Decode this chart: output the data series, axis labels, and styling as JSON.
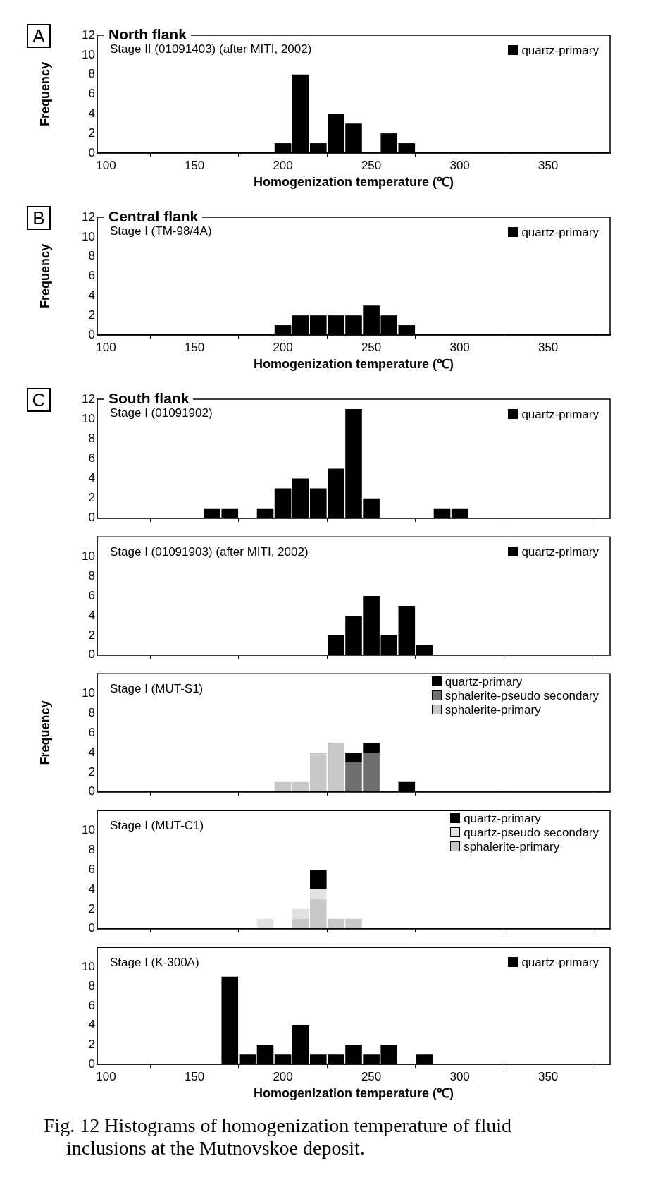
{
  "chart_data": [
    {
      "type": "bar",
      "title": "North flank",
      "subtitle": "Stage II (01091403) (after MITI, 2002)",
      "xlabel": "Homogenization temperature (℃)",
      "ylabel": "Frequency",
      "annotations": [
        "A"
      ],
      "x": [
        100,
        110,
        120,
        130,
        140,
        150,
        160,
        170,
        180,
        190,
        200,
        210,
        220,
        230,
        240,
        250,
        260,
        270,
        280,
        290,
        300,
        310,
        320,
        330,
        340,
        350,
        360,
        370,
        380
      ],
      "series": [
        {
          "name": "quartz-primary",
          "color": "#000000",
          "values": [
            0,
            0,
            0,
            0,
            0,
            0,
            0,
            0,
            0,
            0,
            1,
            8,
            1,
            4,
            3,
            0,
            2,
            1,
            0,
            0,
            0,
            0,
            0,
            0,
            0,
            0,
            0,
            0,
            0
          ]
        }
      ],
      "xlim": [
        95,
        385
      ],
      "xticks": [
        100,
        150,
        200,
        250,
        300,
        350
      ],
      "ylim": [
        0,
        12
      ],
      "yticks": [
        0,
        2,
        4,
        6,
        8,
        10,
        12
      ],
      "legend": "top right"
    },
    {
      "type": "bar",
      "title": "Central flank",
      "subtitle": "Stage I (TM-98/4A)",
      "xlabel": "Homogenization temperature (℃)",
      "ylabel": "Frequency",
      "annotations": [
        "B"
      ],
      "x": [
        100,
        110,
        120,
        130,
        140,
        150,
        160,
        170,
        180,
        190,
        200,
        210,
        220,
        230,
        240,
        250,
        260,
        270,
        280,
        290,
        300,
        310,
        320,
        330,
        340,
        350,
        360,
        370,
        380
      ],
      "series": [
        {
          "name": "quartz-primary",
          "color": "#000000",
          "values": [
            0,
            0,
            0,
            0,
            0,
            0,
            0,
            0,
            0,
            0,
            1,
            2,
            2,
            2,
            2,
            3,
            2,
            1,
            0,
            0,
            0,
            0,
            0,
            0,
            0,
            0,
            0,
            0,
            0
          ]
        }
      ],
      "xlim": [
        95,
        385
      ],
      "xticks": [
        100,
        150,
        200,
        250,
        300,
        350
      ],
      "ylim": [
        0,
        12
      ],
      "yticks": [
        0,
        2,
        4,
        6,
        8,
        10,
        12
      ],
      "legend": "top right"
    },
    {
      "type": "bar",
      "title": "South flank",
      "subtitle": "Stage I (01091902)",
      "annotations": [
        "C"
      ],
      "x": [
        100,
        110,
        120,
        130,
        140,
        150,
        160,
        170,
        180,
        190,
        200,
        210,
        220,
        230,
        240,
        250,
        260,
        270,
        280,
        290,
        300,
        310,
        320,
        330,
        340,
        350,
        360,
        370,
        380
      ],
      "series": [
        {
          "name": "quartz-primary",
          "color": "#000000",
          "values": [
            0,
            0,
            0,
            0,
            0,
            0,
            1,
            1,
            0,
            1,
            3,
            4,
            3,
            5,
            11,
            2,
            0,
            0,
            0,
            1,
            1,
            0,
            0,
            0,
            0,
            0,
            0,
            0,
            0
          ]
        }
      ],
      "xlim": [
        95,
        385
      ],
      "xticks": [
        100,
        150,
        200,
        250,
        300,
        350
      ],
      "ylim": [
        0,
        12
      ],
      "yticks": [
        0,
        2,
        4,
        6,
        8,
        10,
        12
      ],
      "legend": "top right",
      "tick_labels": "y"
    },
    {
      "type": "bar",
      "subtitle": "Stage I (01091903) (after MITI, 2002)",
      "x": [
        100,
        110,
        120,
        130,
        140,
        150,
        160,
        170,
        180,
        190,
        200,
        210,
        220,
        230,
        240,
        250,
        260,
        270,
        280,
        290,
        300,
        310,
        320,
        330,
        340,
        350,
        360,
        370,
        380
      ],
      "series": [
        {
          "name": "quartz-primary",
          "color": "#000000",
          "values": [
            0,
            0,
            0,
            0,
            0,
            0,
            0,
            0,
            0,
            0,
            0,
            0,
            0,
            2,
            4,
            6,
            2,
            5,
            1,
            0,
            0,
            0,
            0,
            0,
            0,
            0,
            0,
            0,
            0
          ]
        }
      ],
      "xlim": [
        95,
        385
      ],
      "xticks": [
        100,
        150,
        200,
        250,
        300,
        350
      ],
      "ylim": [
        0,
        12
      ],
      "yticks": [
        0,
        2,
        4,
        6,
        8,
        10
      ],
      "legend": "top right",
      "tick_labels": "y"
    },
    {
      "type": "bar",
      "subtitle": "Stage I (MUT-S1)",
      "ylabel": "Frequency",
      "stacked": true,
      "x": [
        100,
        110,
        120,
        130,
        140,
        150,
        160,
        170,
        180,
        190,
        200,
        210,
        220,
        230,
        240,
        250,
        260,
        270,
        280,
        290,
        300,
        310,
        320,
        330,
        340,
        350,
        360,
        370,
        380
      ],
      "series": [
        {
          "name": "sphalerite-primary",
          "color": "#c8c8c8",
          "values": [
            0,
            0,
            0,
            0,
            0,
            0,
            0,
            0,
            0,
            0,
            1,
            1,
            4,
            5,
            0,
            0,
            0,
            0,
            0,
            0,
            0,
            0,
            0,
            0,
            0,
            0,
            0,
            0,
            0
          ]
        },
        {
          "name": "sphalerite-pseudo secondary",
          "color": "#6e6e6e",
          "values": [
            0,
            0,
            0,
            0,
            0,
            0,
            0,
            0,
            0,
            0,
            0,
            0,
            0,
            0,
            3,
            4,
            0,
            0,
            0,
            0,
            0,
            0,
            0,
            0,
            0,
            0,
            0,
            0,
            0
          ]
        },
        {
          "name": "quartz-primary",
          "color": "#000000",
          "values": [
            0,
            0,
            0,
            0,
            0,
            0,
            0,
            0,
            0,
            0,
            0,
            0,
            0,
            0,
            1,
            1,
            0,
            1,
            0,
            0,
            0,
            0,
            0,
            0,
            0,
            0,
            0,
            0,
            0
          ]
        }
      ],
      "xlim": [
        95,
        385
      ],
      "xticks": [
        100,
        150,
        200,
        250,
        300,
        350
      ],
      "ylim": [
        0,
        12
      ],
      "yticks": [
        0,
        2,
        4,
        6,
        8,
        10
      ],
      "legend": "top right",
      "tick_labels": "y"
    },
    {
      "type": "bar",
      "subtitle": "Stage I (MUT-C1)",
      "stacked": true,
      "x": [
        100,
        110,
        120,
        130,
        140,
        150,
        160,
        170,
        180,
        190,
        200,
        210,
        220,
        230,
        240,
        250,
        260,
        270,
        280,
        290,
        300,
        310,
        320,
        330,
        340,
        350,
        360,
        370,
        380
      ],
      "series": [
        {
          "name": "sphalerite-primary",
          "color": "#c8c8c8",
          "values": [
            0,
            0,
            0,
            0,
            0,
            0,
            0,
            0,
            0,
            0,
            0,
            1,
            3,
            1,
            1,
            0,
            0,
            0,
            0,
            0,
            0,
            0,
            0,
            0,
            0,
            0,
            0,
            0,
            0
          ]
        },
        {
          "name": "quartz-pseudo secondary",
          "color": "#e2e2e2",
          "values": [
            0,
            0,
            0,
            0,
            0,
            0,
            0,
            0,
            0,
            1,
            0,
            1,
            1,
            0,
            0,
            0,
            0,
            0,
            0,
            0,
            0,
            0,
            0,
            0,
            0,
            0,
            0,
            0,
            0
          ]
        },
        {
          "name": "quartz-primary",
          "color": "#000000",
          "values": [
            0,
            0,
            0,
            0,
            0,
            0,
            0,
            0,
            0,
            0,
            0,
            0,
            2,
            0,
            0,
            0,
            0,
            0,
            0,
            0,
            0,
            0,
            0,
            0,
            0,
            0,
            0,
            0,
            0
          ]
        }
      ],
      "xlim": [
        95,
        385
      ],
      "xticks": [
        100,
        150,
        200,
        250,
        300,
        350
      ],
      "ylim": [
        0,
        12
      ],
      "yticks": [
        0,
        2,
        4,
        6,
        8,
        10
      ],
      "legend": "top right",
      "tick_labels": "y"
    },
    {
      "type": "bar",
      "subtitle": "Stage I (K-300A)",
      "xlabel": "Homogenization temperature (℃)",
      "annotations": [
        "Fig. 12  Histograms of homogenization temperature of fluid inclusions at the Mutnovskoe deposit."
      ],
      "x": [
        100,
        110,
        120,
        130,
        140,
        150,
        160,
        170,
        180,
        190,
        200,
        210,
        220,
        230,
        240,
        250,
        260,
        270,
        280,
        290,
        300,
        310,
        320,
        330,
        340,
        350,
        360,
        370,
        380
      ],
      "series": [
        {
          "name": "quartz-primary",
          "color": "#000000",
          "values": [
            0,
            0,
            0,
            0,
            0,
            0,
            0,
            9,
            1,
            2,
            1,
            4,
            1,
            1,
            2,
            1,
            2,
            0,
            1,
            0,
            0,
            0,
            0,
            0,
            0,
            0,
            0,
            0,
            0
          ]
        }
      ],
      "xlim": [
        95,
        385
      ],
      "xticks": [
        100,
        150,
        200,
        250,
        300,
        350
      ],
      "ylim": [
        0,
        12
      ],
      "yticks": [
        0,
        2,
        4,
        6,
        8,
        10
      ],
      "legend": "top right"
    }
  ]
}
